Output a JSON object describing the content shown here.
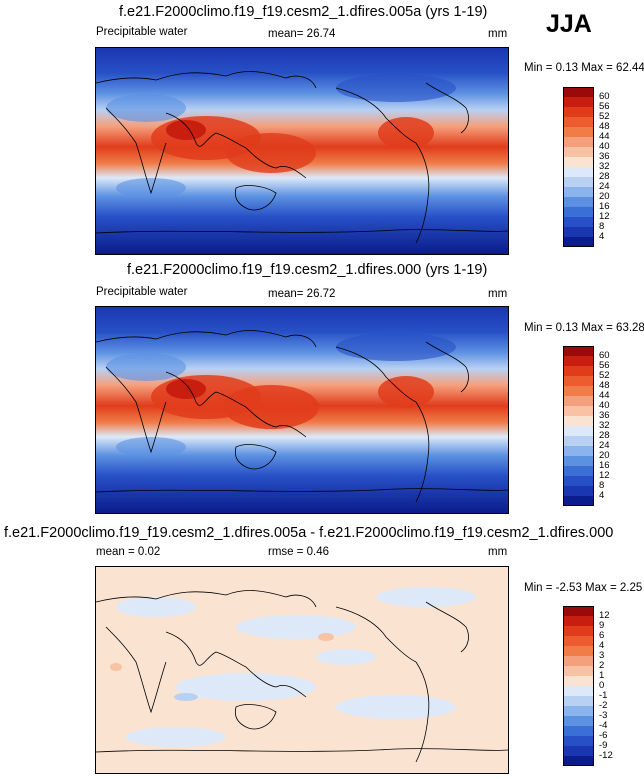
{
  "season": "JJA",
  "panels": [
    {
      "title": "f.e21.F2000climo.f19_f19.cesm2_1.dfires.005a (yrs 1-19)",
      "variable": "Precipitable water",
      "mean_text": "mean=  26.74",
      "units": "mm",
      "minmax": "Min =  0.13 Max =  62.44",
      "colorbar": {
        "ticks": [
          "60",
          "56",
          "52",
          "48",
          "44",
          "40",
          "36",
          "32",
          "28",
          "24",
          "20",
          "16",
          "12",
          "8",
          "4"
        ],
        "colors": [
          "#9b0a0a",
          "#c81e10",
          "#e03c1c",
          "#ec5c2e",
          "#f07c48",
          "#f5a07c",
          "#f8c2a4",
          "#fbe3d2",
          "#dde9f8",
          "#b8d1f3",
          "#8cb4ec",
          "#5c91e2",
          "#3a6fd6",
          "#2850c6",
          "#1a36b0",
          "#0b1c8c"
        ]
      }
    },
    {
      "title": "f.e21.F2000climo.f19_f19.cesm2_1.dfires.000 (yrs 1-19)",
      "variable": "Precipitable water",
      "mean_text": "mean=  26.72",
      "units": "mm",
      "minmax": "Min =  0.13 Max =  63.28",
      "colorbar": {
        "ticks": [
          "60",
          "56",
          "52",
          "48",
          "44",
          "40",
          "36",
          "32",
          "28",
          "24",
          "20",
          "16",
          "12",
          "8",
          "4"
        ],
        "colors": [
          "#9b0a0a",
          "#c81e10",
          "#e03c1c",
          "#ec5c2e",
          "#f07c48",
          "#f5a07c",
          "#f8c2a4",
          "#fbe3d2",
          "#dde9f8",
          "#b8d1f3",
          "#8cb4ec",
          "#5c91e2",
          "#3a6fd6",
          "#2850c6",
          "#1a36b0",
          "#0b1c8c"
        ]
      }
    },
    {
      "title": "f.e21.F2000climo.f19_f19.cesm2_1.dfires.005a - f.e21.F2000climo.f19_f19.cesm2_1.dfires.000",
      "mean_text": "mean =  0.02",
      "rmse_text": "rmse =   0.46",
      "units": "mm",
      "minmax": "Min = -2.53 Max =   2.25",
      "colorbar": {
        "ticks": [
          "12",
          "9",
          "6",
          "4",
          "3",
          "2",
          "1",
          "0",
          "-1",
          "-2",
          "-3",
          "-4",
          "-6",
          "-9",
          "-12"
        ],
        "colors": [
          "#9b0a0a",
          "#c81e10",
          "#e03c1c",
          "#ec5c2e",
          "#f07c48",
          "#f5a07c",
          "#f8c2a4",
          "#fbe3d2",
          "#dde9f8",
          "#b8d1f3",
          "#8cb4ec",
          "#5c91e2",
          "#3a6fd6",
          "#2850c6",
          "#1a36b0",
          "#0b1c8c"
        ]
      }
    }
  ]
}
